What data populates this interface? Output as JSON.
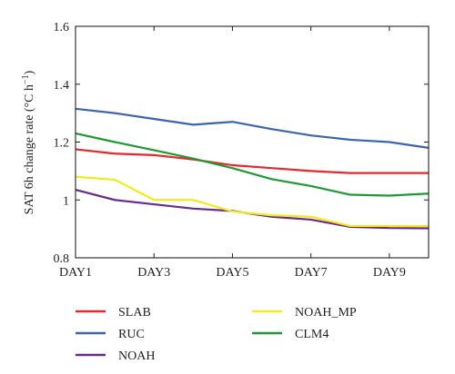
{
  "chart_data": {
    "type": "line",
    "ylabel": "SAT 6h change rate (°C h⁻¹)",
    "ylabel_parts": {
      "prefix": "SAT 6h change rate (°C h",
      "superscript": "−1",
      "suffix": ")"
    },
    "x": [
      1,
      2,
      3,
      4,
      5,
      6,
      7,
      8,
      9,
      10
    ],
    "xlim": [
      1,
      10
    ],
    "ylim": [
      0.8,
      1.6
    ],
    "xticks": [
      {
        "x": 1,
        "label": "DAY1"
      },
      {
        "x": 3,
        "label": "DAY3"
      },
      {
        "x": 5,
        "label": "DAY5"
      },
      {
        "x": 7,
        "label": "DAY7"
      },
      {
        "x": 9,
        "label": "DAY9"
      }
    ],
    "yticks": [
      {
        "y": 0.8,
        "label": "0.8"
      },
      {
        "y": 1.0,
        "label": "1"
      },
      {
        "y": 1.2,
        "label": "1.2"
      },
      {
        "y": 1.4,
        "label": "1.4"
      },
      {
        "y": 1.6,
        "label": "1.6"
      }
    ],
    "grid": false,
    "legend_position": "bottom",
    "series": [
      {
        "name": "SLAB",
        "color": "#e8262b",
        "values": [
          1.175,
          1.16,
          1.155,
          1.14,
          1.12,
          1.11,
          1.1,
          1.093,
          1.093,
          1.093
        ]
      },
      {
        "name": "RUC",
        "color": "#3b64b0",
        "values": [
          1.315,
          1.3,
          1.28,
          1.26,
          1.27,
          1.245,
          1.223,
          1.208,
          1.2,
          1.18
        ]
      },
      {
        "name": "NOAH",
        "color": "#6a2a8c",
        "values": [
          1.035,
          1.0,
          0.985,
          0.97,
          0.962,
          0.942,
          0.932,
          0.907,
          0.903,
          0.902
        ]
      },
      {
        "name": "NOAH_MP",
        "color": "#f2ea1c",
        "values": [
          1.08,
          1.07,
          1.0,
          1.0,
          0.96,
          0.947,
          0.942,
          0.91,
          0.91,
          0.91
        ]
      },
      {
        "name": "CLM4",
        "color": "#1d9a33",
        "values": [
          1.23,
          1.2,
          1.172,
          1.143,
          1.11,
          1.072,
          1.048,
          1.018,
          1.015,
          1.022
        ]
      }
    ]
  }
}
